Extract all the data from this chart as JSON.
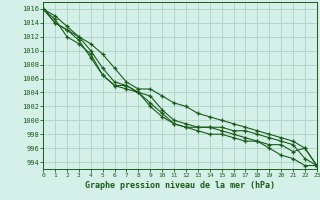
{
  "title": "Graphe pression niveau de la mer (hPa)",
  "background_color": "#d4f0e8",
  "grid_color": "#b0d8c8",
  "line_color": "#1a5c1a",
  "ylim": [
    993.0,
    1017.0
  ],
  "xlim": [
    0,
    23
  ],
  "yticks": [
    994,
    996,
    998,
    1000,
    1002,
    1004,
    1006,
    1008,
    1010,
    1012,
    1014,
    1016
  ],
  "xticks": [
    0,
    1,
    2,
    3,
    4,
    5,
    6,
    7,
    8,
    9,
    10,
    11,
    12,
    13,
    14,
    15,
    16,
    17,
    18,
    19,
    20,
    21,
    22,
    23
  ],
  "series": [
    [
      1016,
      1015,
      1013.5,
      1012,
      1011,
      1009.5,
      1007.5,
      1005.5,
      1004.5,
      1004.5,
      1003.5,
      1002.5,
      1002,
      1001,
      1000.5,
      1000,
      999.5,
      999,
      998.5,
      998,
      997.5,
      997,
      996.0,
      993.5
    ],
    [
      1016,
      1014,
      1013,
      1011.5,
      1009,
      1006.5,
      1005,
      1004.5,
      1004,
      1003.5,
      1001.5,
      1000,
      999.5,
      999,
      999,
      998.5,
      998,
      997.5,
      997,
      996.5,
      996.5,
      995.5,
      996.0,
      993.5
    ],
    [
      1016,
      1014,
      1013,
      1012,
      1010,
      1007.5,
      1005.5,
      1005,
      1004,
      1002.5,
      1001,
      999.5,
      999,
      999,
      999,
      999,
      998.5,
      998.5,
      998,
      997.5,
      997,
      996.5,
      994.5,
      993.5
    ],
    [
      1016,
      1014.5,
      1012,
      1011,
      1009.5,
      1006.5,
      1005,
      1005,
      1004,
      1002,
      1000.5,
      999.5,
      999,
      998.5,
      998,
      998,
      997.5,
      997,
      997,
      996,
      995,
      994.5,
      993.5,
      993.5
    ]
  ]
}
